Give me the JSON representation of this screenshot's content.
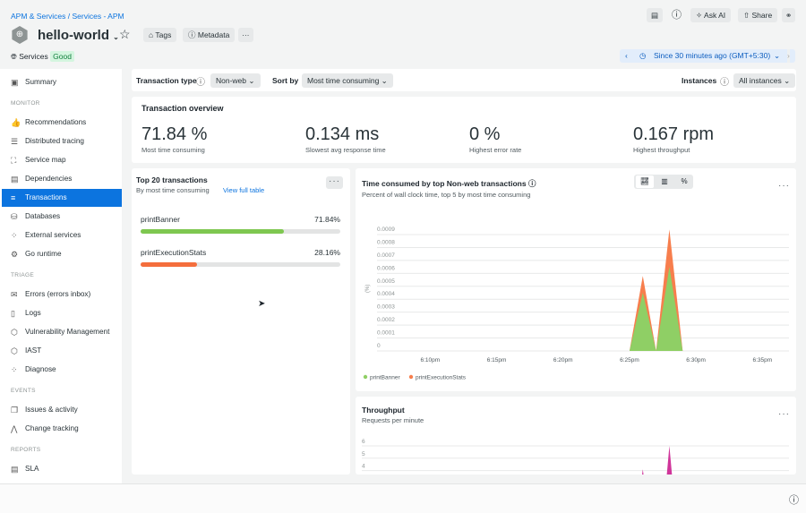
{
  "header": {
    "breadcrumb": "APM & Services / Services - APM",
    "entity_name": "hello-world",
    "tags": "Tags",
    "metadata": "Metadata",
    "more": "···",
    "ask_ai": "Ask AI",
    "share": "Share",
    "services": "Services",
    "status": "Good",
    "time_picker": "Since 30 minutes ago (GMT+5:30)"
  },
  "sidebar": {
    "summary": "Summary",
    "sections": [
      {
        "title": "MONITOR",
        "items": [
          {
            "label": "Recommendations",
            "icon": "👍"
          },
          {
            "label": "Distributed tracing",
            "icon": "☰"
          },
          {
            "label": "Service map",
            "icon": "⛶"
          },
          {
            "label": "Dependencies",
            "icon": "▤"
          },
          {
            "label": "Transactions",
            "icon": "≡",
            "active": true
          },
          {
            "label": "Databases",
            "icon": "⛁"
          },
          {
            "label": "External services",
            "icon": "⁘"
          },
          {
            "label": "Go runtime",
            "icon": "⚙"
          }
        ]
      },
      {
        "title": "TRIAGE",
        "items": [
          {
            "label": "Errors (errors inbox)",
            "icon": "✉"
          },
          {
            "label": "Logs",
            "icon": "▯"
          },
          {
            "label": "Vulnerability Management",
            "icon": "⬡"
          },
          {
            "label": "IAST",
            "icon": "⬡"
          },
          {
            "label": "Diagnose",
            "icon": "⁘"
          }
        ]
      },
      {
        "title": "EVENTS",
        "items": [
          {
            "label": "Issues & activity",
            "icon": "❐"
          },
          {
            "label": "Change tracking",
            "icon": "⋀"
          }
        ]
      },
      {
        "title": "REPORTS",
        "items": [
          {
            "label": "SLA",
            "icon": "▤"
          }
        ]
      }
    ]
  },
  "filters": {
    "transaction_type_label": "Transaction type",
    "transaction_type": "Non-web",
    "sort_by_label": "Sort by",
    "sort_by": "Most time consuming",
    "instances_label": "Instances",
    "instances": "All instances"
  },
  "overview": {
    "title": "Transaction overview",
    "metrics": [
      {
        "value": "71.84 %",
        "label": "Most time consuming"
      },
      {
        "value": "0.134 ms",
        "label": "Slowest avg response time"
      },
      {
        "value": "0 %",
        "label": "Highest error rate"
      },
      {
        "value": "0.167 rpm",
        "label": "Highest throughput"
      }
    ]
  },
  "top20": {
    "title": "Top 20 transactions",
    "subtitle": "By most time consuming",
    "link": "View full table",
    "rows": [
      {
        "name": "printBanner",
        "value": "71.84%",
        "percent": 71.84,
        "color": "#7ec750"
      },
      {
        "name": "printExecutionStats",
        "value": "28.16%",
        "percent": 28.16,
        "color": "#f46e3c"
      }
    ]
  },
  "chart_data": [
    {
      "type": "area",
      "stacked": true,
      "title": "Time consumed by top Non-web transactions",
      "subtitle": "Percent of wall clock time, top 5 by most time consuming",
      "ylabel": "(%)",
      "ylim": [
        0,
        0.0009
      ],
      "yticks": [
        "0",
        "0.0001",
        "0.0002",
        "0.0003",
        "0.0004",
        "0.0005",
        "0.0006",
        "0.0007",
        "0.0008",
        "0.0009"
      ],
      "xticks": [
        "6:10pm",
        "6:15pm",
        "6:20pm",
        "6:25pm",
        "6:30pm",
        "6:35pm"
      ],
      "xlim": [
        "6:06pm",
        "6:37pm"
      ],
      "x": [
        "6:25pm",
        "6:26pm",
        "6:27pm",
        "6:28pm",
        "6:29pm"
      ],
      "grid": true,
      "legend": "bottom-left",
      "series": [
        {
          "name": "printBanner",
          "color": "#8fcf65",
          "values": [
            0,
            0.00045,
            0,
            0.00065,
            0
          ]
        },
        {
          "name": "printExecutionStats",
          "color": "#f77e4d",
          "values": [
            0,
            0.00013,
            0,
            0.00029,
            0
          ]
        }
      ]
    },
    {
      "type": "area",
      "title": "Throughput",
      "subtitle": "Requests per minute",
      "yticks": [
        "4",
        "5",
        "6"
      ],
      "ylim": [
        0,
        6
      ],
      "xlim": [
        "6:06pm",
        "6:37pm"
      ],
      "x": [
        "6:25:30pm",
        "6:26pm",
        "6:26:30pm",
        "6:27:30pm",
        "6:28pm",
        "6:28:30pm"
      ],
      "grid": true,
      "series": [
        {
          "color": "#d0359a",
          "values": [
            0,
            4.1,
            0,
            0,
            6,
            0
          ]
        }
      ]
    }
  ]
}
